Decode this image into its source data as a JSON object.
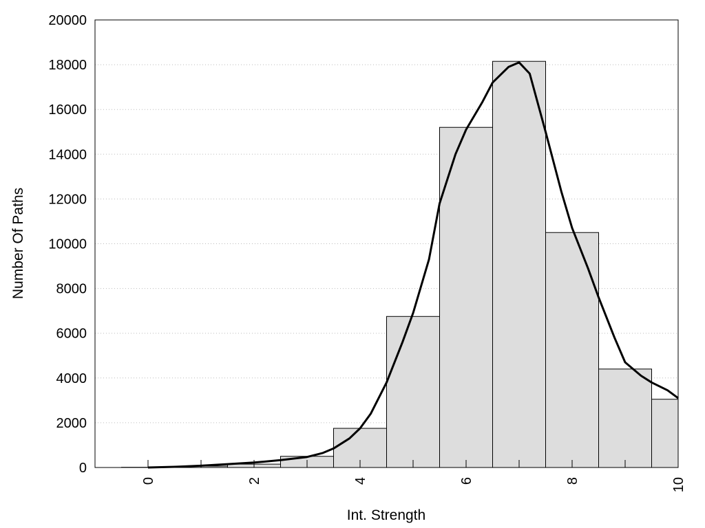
{
  "chart_data": {
    "type": "bar",
    "xlabel": "Int. Strength",
    "ylabel": "Number Of Paths",
    "xlim": [
      -1,
      10
    ],
    "ylim": [
      0,
      20000
    ],
    "grid": true,
    "grid_style": "dotted-horizontal",
    "bar_color": "#dddddd",
    "curve_color": "#000000",
    "x_ticks": [
      0,
      2,
      4,
      6,
      8,
      10
    ],
    "y_ticks": [
      0,
      2000,
      4000,
      6000,
      8000,
      10000,
      12000,
      14000,
      16000,
      18000,
      20000
    ],
    "series": [
      {
        "type": "bar",
        "categories": [
          0,
          1,
          2,
          3,
          4,
          5,
          6,
          7,
          8,
          9,
          10
        ],
        "values": [
          10,
          60,
          150,
          500,
          1750,
          6750,
          15200,
          18150,
          10500,
          4400,
          3050
        ]
      },
      {
        "type": "line",
        "x": [
          0,
          0.5,
          1,
          1.5,
          2,
          2.5,
          3,
          3.3,
          3.5,
          3.8,
          4,
          4.2,
          4.5,
          4.8,
          5,
          5.3,
          5.5,
          5.8,
          6,
          6.3,
          6.5,
          6.8,
          7,
          7.2,
          7.5,
          7.8,
          8,
          8.3,
          8.5,
          8.8,
          9,
          9.3,
          9.5,
          9.8,
          10
        ],
        "y": [
          0,
          30,
          80,
          150,
          220,
          330,
          470,
          650,
          850,
          1300,
          1750,
          2400,
          3800,
          5600,
          6900,
          9300,
          11800,
          14000,
          15100,
          16300,
          17200,
          17900,
          18100,
          17600,
          15000,
          12300,
          10700,
          8900,
          7600,
          5800,
          4700,
          4100,
          3800,
          3450,
          3100
        ]
      }
    ]
  }
}
